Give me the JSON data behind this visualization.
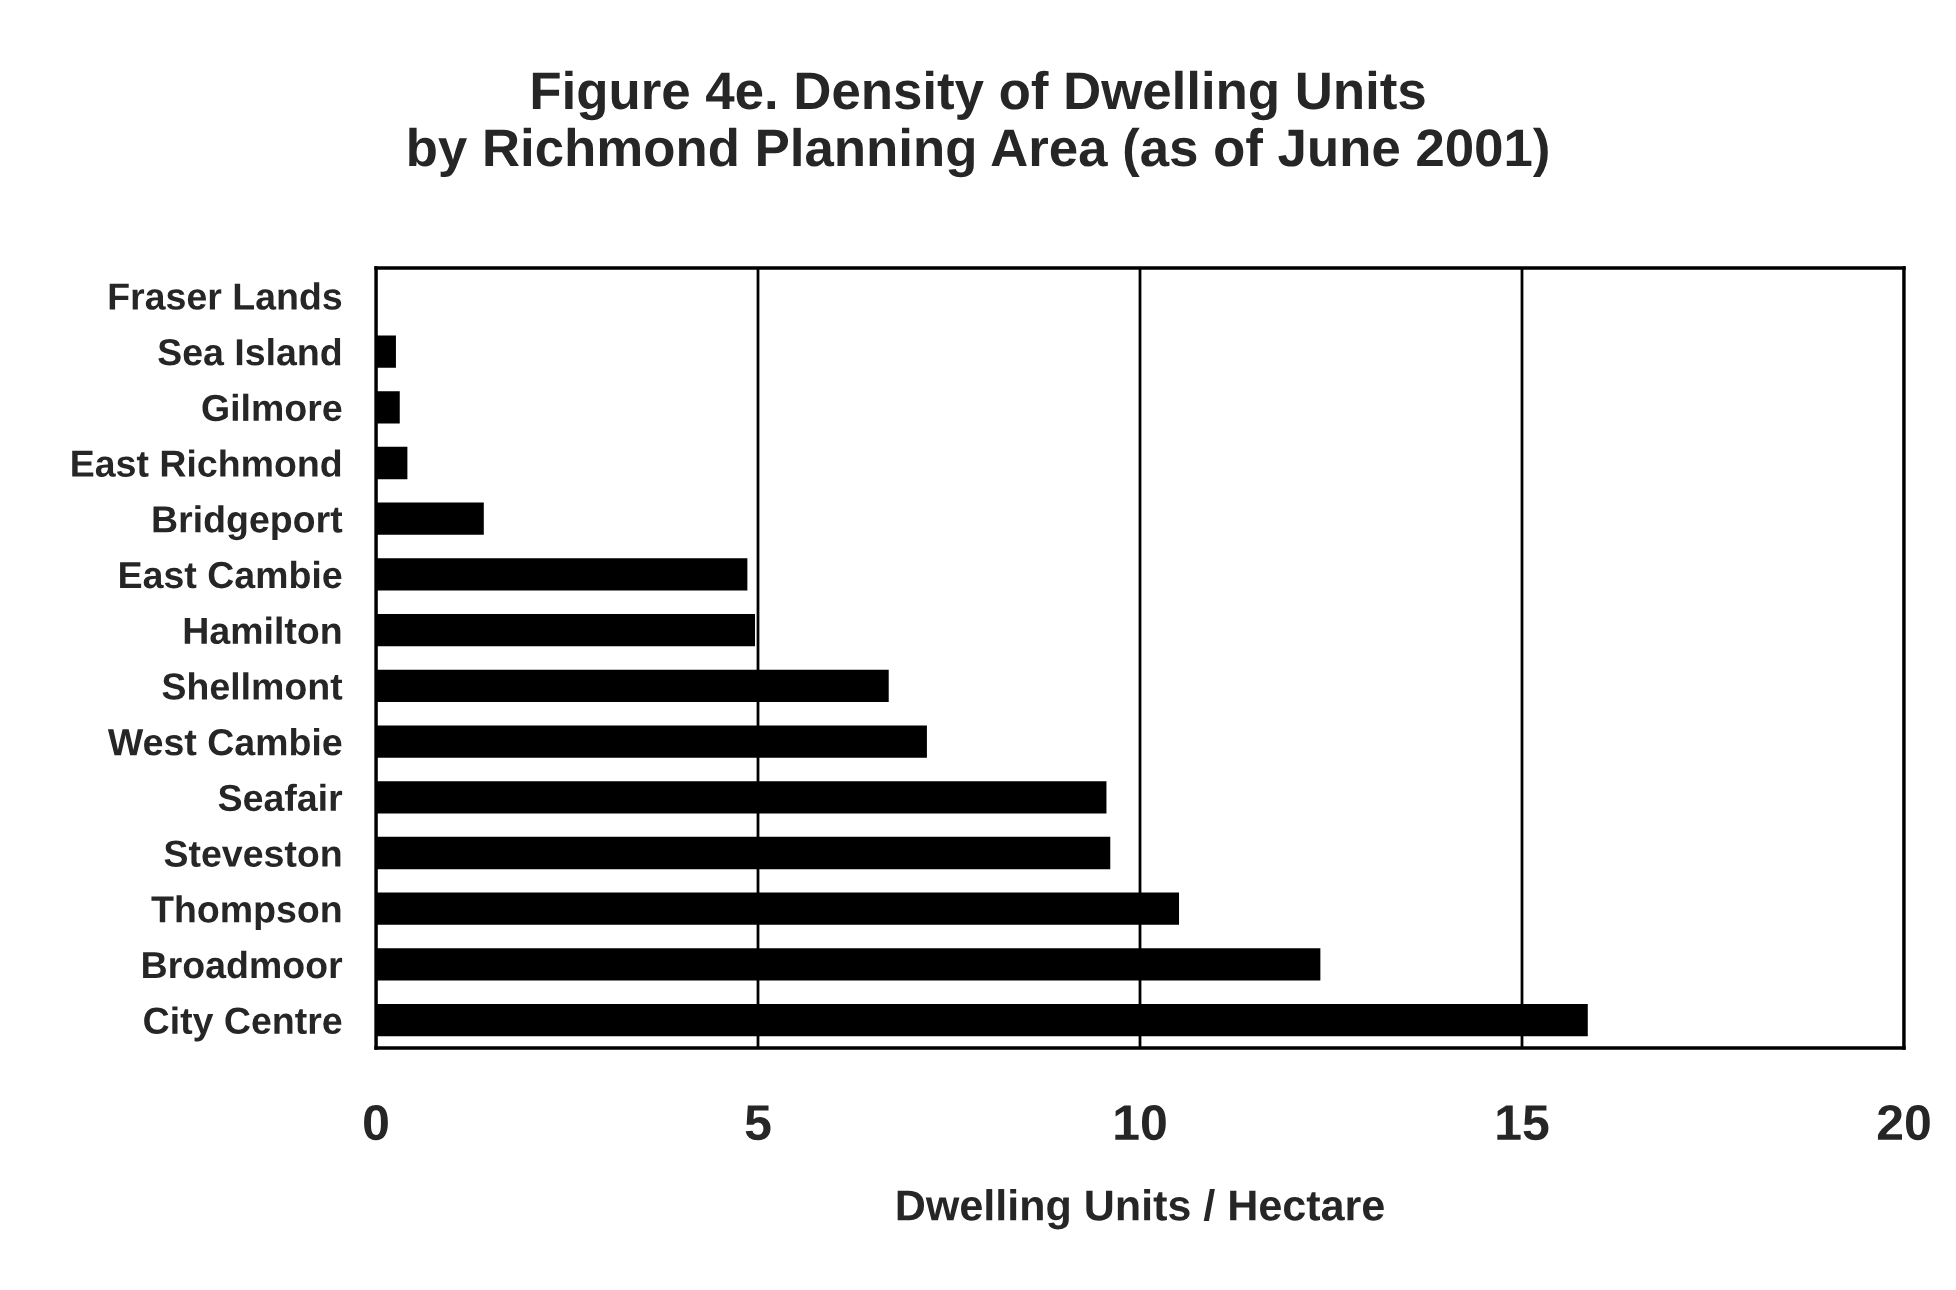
{
  "chart_data": {
    "type": "bar",
    "orientation": "horizontal",
    "title": "Figure 4e. Density of Dwelling Units\nby Richmond Planning Area (as of June 2001)",
    "xlabel": "Dwelling Units / Hectare",
    "categories": [
      "Fraser Lands",
      "Sea Island",
      "Gilmore",
      "East Richmond",
      "Bridgeport",
      "East Cambie",
      "Hamilton",
      "Shellmont",
      "West Cambie",
      "Seafair",
      "Steveston",
      "Thompson",
      "Broadmoor",
      "City Centre"
    ],
    "values": [
      0,
      0.25,
      0.3,
      0.4,
      1.4,
      4.85,
      4.95,
      6.7,
      7.2,
      9.55,
      9.6,
      10.5,
      12.35,
      15.85
    ],
    "color": "#000000",
    "xlim": [
      0,
      20
    ],
    "xticks": [
      0,
      5,
      10,
      15,
      20
    ],
    "grid": "x"
  }
}
